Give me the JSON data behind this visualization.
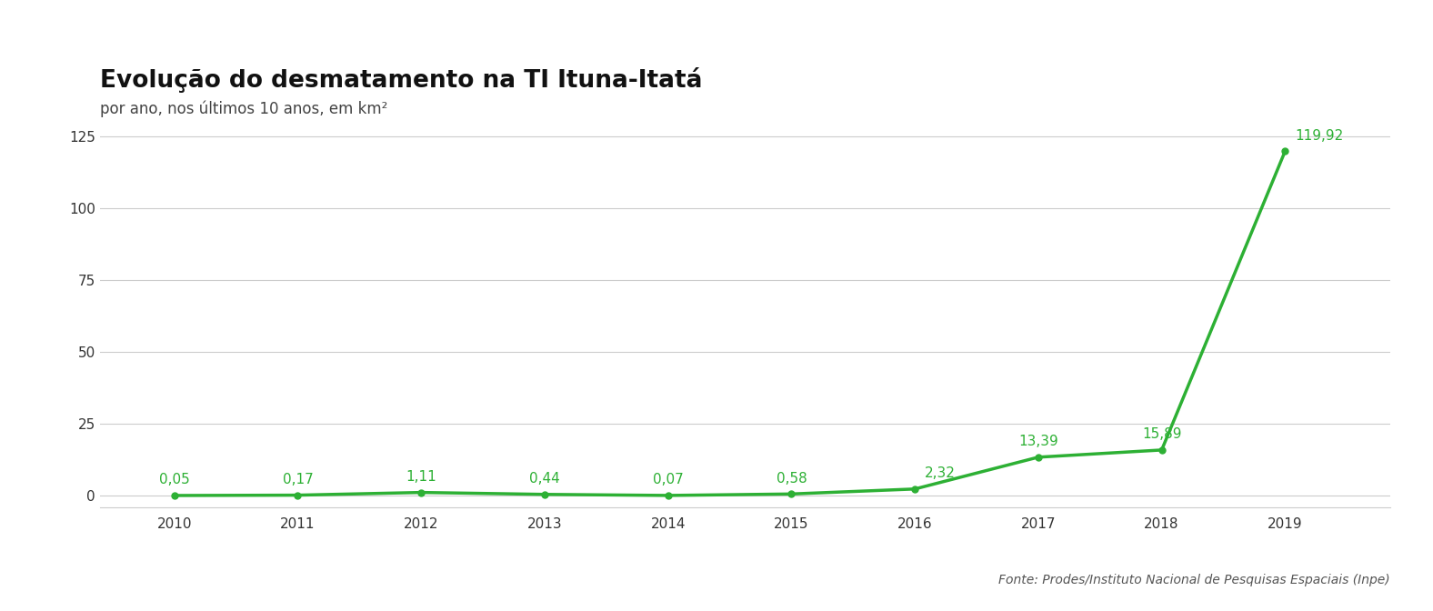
{
  "title": "Evolução do desmatamento na TI Ituna-Itatá",
  "subtitle": "por ano, nos últimos 10 anos, em km²",
  "source": "Fonte: Prodes/Instituto Nacional de Pesquisas Espaciais (Inpe)",
  "years": [
    2010,
    2011,
    2012,
    2013,
    2014,
    2015,
    2016,
    2017,
    2018,
    2019
  ],
  "values": [
    0.05,
    0.17,
    1.11,
    0.44,
    0.07,
    0.58,
    2.32,
    13.39,
    15.89,
    119.92
  ],
  "labels": [
    "0,05",
    "0,17",
    "1,11",
    "0,44",
    "0,07",
    "0,58",
    "2,32",
    "13,39",
    "15,89",
    "119,92"
  ],
  "line_color": "#2db034",
  "marker_color": "#2db034",
  "ylim": [
    -4,
    130
  ],
  "yticks": [
    0,
    25,
    50,
    75,
    100,
    125
  ],
  "background_color": "#ffffff",
  "grid_color": "#cccccc",
  "title_fontsize": 19,
  "subtitle_fontsize": 12,
  "label_fontsize": 11,
  "tick_fontsize": 11,
  "source_fontsize": 10
}
